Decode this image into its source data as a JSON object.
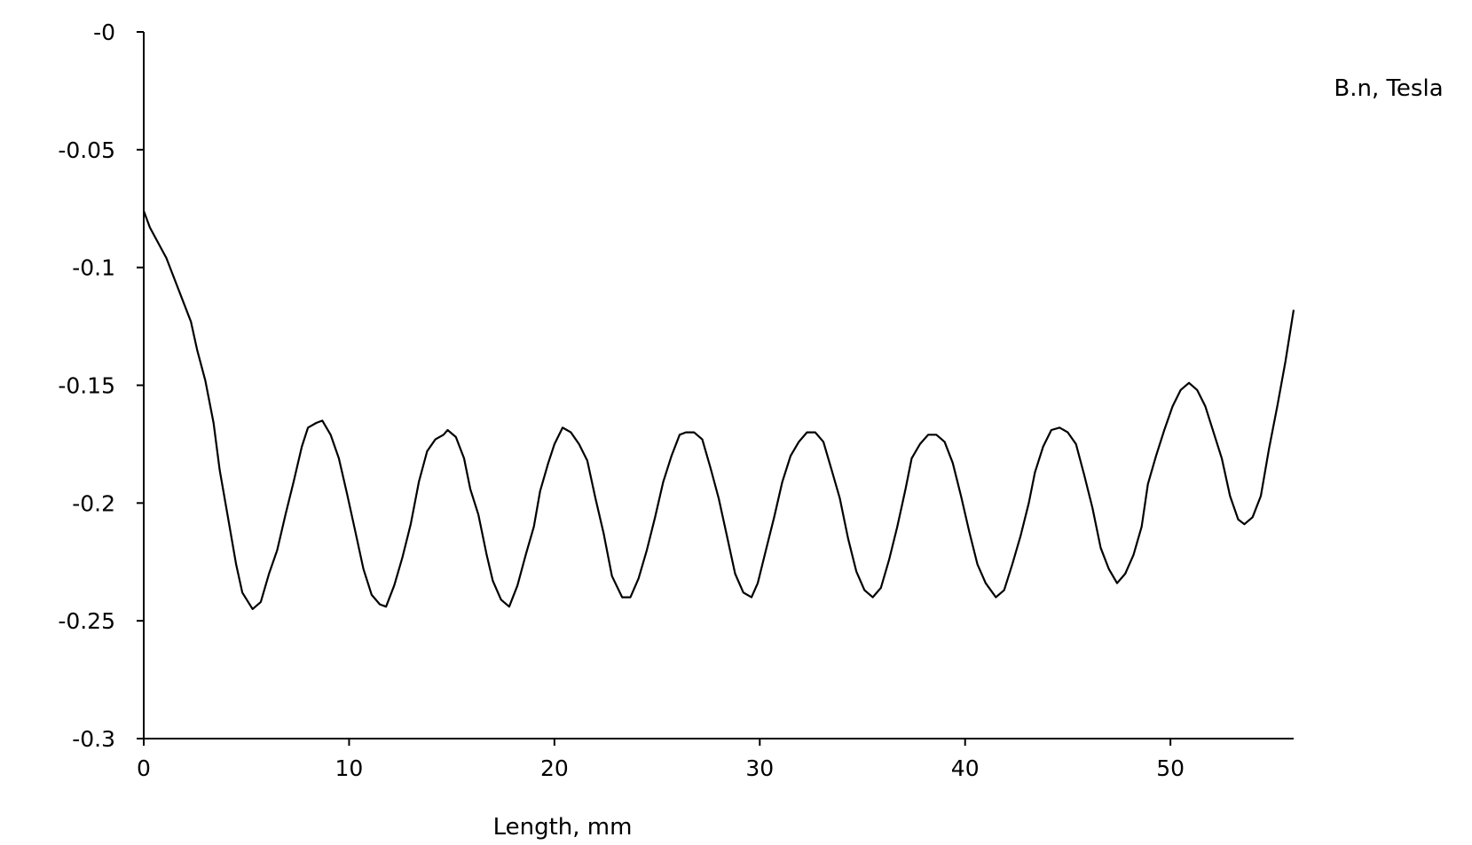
{
  "chart_data": {
    "type": "line",
    "title": "",
    "xlabel": "Length, mm",
    "ylabel": "B.n, Tesla",
    "xlim": [
      0,
      56
    ],
    "ylim": [
      -0.3,
      0
    ],
    "x_ticks": [
      0,
      10,
      20,
      30,
      40,
      50
    ],
    "x_tick_labels": [
      "0",
      "10",
      "20",
      "30",
      "40",
      "50"
    ],
    "y_ticks": [
      0,
      -0.05,
      -0.1,
      -0.15,
      -0.2,
      -0.25,
      -0.3
    ],
    "y_tick_labels": [
      "-0",
      "-0.05",
      "-0.1",
      "-0.15",
      "-0.2",
      "-0.25",
      "-0.3"
    ],
    "grid": false,
    "legend": "none",
    "series": [
      {
        "color": "#000000",
        "points": [
          [
            0.0,
            -0.076
          ],
          [
            0.3,
            -0.083
          ],
          [
            1.1,
            -0.096
          ],
          [
            1.5,
            -0.105
          ],
          [
            2.3,
            -0.123
          ],
          [
            2.6,
            -0.135
          ],
          [
            3.0,
            -0.148
          ],
          [
            3.4,
            -0.166
          ],
          [
            3.7,
            -0.186
          ],
          [
            4.1,
            -0.206
          ],
          [
            4.5,
            -0.226
          ],
          [
            4.8,
            -0.238
          ],
          [
            5.3,
            -0.245
          ],
          [
            5.7,
            -0.242
          ],
          [
            6.1,
            -0.23
          ],
          [
            6.5,
            -0.22
          ],
          [
            6.9,
            -0.205
          ],
          [
            7.3,
            -0.191
          ],
          [
            7.7,
            -0.176
          ],
          [
            8.0,
            -0.168
          ],
          [
            8.4,
            -0.166
          ],
          [
            8.7,
            -0.165
          ],
          [
            9.1,
            -0.171
          ],
          [
            9.5,
            -0.181
          ],
          [
            9.9,
            -0.196
          ],
          [
            10.3,
            -0.212
          ],
          [
            10.7,
            -0.228
          ],
          [
            11.1,
            -0.239
          ],
          [
            11.5,
            -0.243
          ],
          [
            11.8,
            -0.244
          ],
          [
            12.2,
            -0.235
          ],
          [
            12.6,
            -0.223
          ],
          [
            13.0,
            -0.209
          ],
          [
            13.4,
            -0.191
          ],
          [
            13.8,
            -0.178
          ],
          [
            14.2,
            -0.173
          ],
          [
            14.6,
            -0.171
          ],
          [
            14.8,
            -0.169
          ],
          [
            15.2,
            -0.172
          ],
          [
            15.6,
            -0.181
          ],
          [
            15.9,
            -0.194
          ],
          [
            16.3,
            -0.205
          ],
          [
            16.7,
            -0.222
          ],
          [
            17.0,
            -0.233
          ],
          [
            17.4,
            -0.241
          ],
          [
            17.8,
            -0.244
          ],
          [
            18.2,
            -0.235
          ],
          [
            18.6,
            -0.222
          ],
          [
            19.0,
            -0.21
          ],
          [
            19.3,
            -0.195
          ],
          [
            19.7,
            -0.183
          ],
          [
            20.0,
            -0.175
          ],
          [
            20.4,
            -0.168
          ],
          [
            20.8,
            -0.17
          ],
          [
            21.2,
            -0.175
          ],
          [
            21.6,
            -0.182
          ],
          [
            22.0,
            -0.198
          ],
          [
            22.4,
            -0.213
          ],
          [
            22.8,
            -0.231
          ],
          [
            23.3,
            -0.24
          ],
          [
            23.7,
            -0.24
          ],
          [
            24.1,
            -0.232
          ],
          [
            24.5,
            -0.22
          ],
          [
            24.9,
            -0.206
          ],
          [
            25.3,
            -0.191
          ],
          [
            25.7,
            -0.18
          ],
          [
            26.1,
            -0.171
          ],
          [
            26.4,
            -0.17
          ],
          [
            26.8,
            -0.17
          ],
          [
            27.2,
            -0.173
          ],
          [
            27.6,
            -0.185
          ],
          [
            28.0,
            -0.198
          ],
          [
            28.4,
            -0.214
          ],
          [
            28.8,
            -0.23
          ],
          [
            29.2,
            -0.238
          ],
          [
            29.6,
            -0.24
          ],
          [
            29.9,
            -0.234
          ],
          [
            30.3,
            -0.22
          ],
          [
            30.7,
            -0.206
          ],
          [
            31.1,
            -0.191
          ],
          [
            31.5,
            -0.18
          ],
          [
            31.9,
            -0.174
          ],
          [
            32.3,
            -0.17
          ],
          [
            32.7,
            -0.17
          ],
          [
            33.1,
            -0.174
          ],
          [
            33.5,
            -0.186
          ],
          [
            33.9,
            -0.198
          ],
          [
            34.3,
            -0.215
          ],
          [
            34.7,
            -0.229
          ],
          [
            35.1,
            -0.237
          ],
          [
            35.5,
            -0.24
          ],
          [
            35.9,
            -0.236
          ],
          [
            36.3,
            -0.224
          ],
          [
            36.7,
            -0.21
          ],
          [
            37.1,
            -0.194
          ],
          [
            37.4,
            -0.181
          ],
          [
            37.8,
            -0.175
          ],
          [
            38.2,
            -0.171
          ],
          [
            38.6,
            -0.171
          ],
          [
            39.0,
            -0.174
          ],
          [
            39.4,
            -0.183
          ],
          [
            39.8,
            -0.197
          ],
          [
            40.2,
            -0.212
          ],
          [
            40.6,
            -0.226
          ],
          [
            41.0,
            -0.234
          ],
          [
            41.5,
            -0.24
          ],
          [
            41.9,
            -0.237
          ],
          [
            42.3,
            -0.226
          ],
          [
            42.7,
            -0.214
          ],
          [
            43.1,
            -0.2
          ],
          [
            43.4,
            -0.187
          ],
          [
            43.8,
            -0.176
          ],
          [
            44.2,
            -0.169
          ],
          [
            44.6,
            -0.168
          ],
          [
            45.0,
            -0.17
          ],
          [
            45.4,
            -0.175
          ],
          [
            45.8,
            -0.188
          ],
          [
            46.2,
            -0.202
          ],
          [
            46.6,
            -0.219
          ],
          [
            47.0,
            -0.228
          ],
          [
            47.4,
            -0.234
          ],
          [
            47.8,
            -0.23
          ],
          [
            48.2,
            -0.222
          ],
          [
            48.6,
            -0.21
          ],
          [
            48.9,
            -0.192
          ],
          [
            49.3,
            -0.18
          ],
          [
            49.7,
            -0.169
          ],
          [
            50.1,
            -0.159
          ],
          [
            50.5,
            -0.152
          ],
          [
            50.9,
            -0.149
          ],
          [
            51.3,
            -0.152
          ],
          [
            51.7,
            -0.159
          ],
          [
            52.1,
            -0.17
          ],
          [
            52.5,
            -0.181
          ],
          [
            52.9,
            -0.197
          ],
          [
            53.3,
            -0.207
          ],
          [
            53.6,
            -0.209
          ],
          [
            54.0,
            -0.206
          ],
          [
            54.4,
            -0.197
          ],
          [
            54.8,
            -0.177
          ],
          [
            55.2,
            -0.159
          ],
          [
            55.6,
            -0.14
          ],
          [
            56.0,
            -0.118
          ]
        ]
      }
    ]
  }
}
